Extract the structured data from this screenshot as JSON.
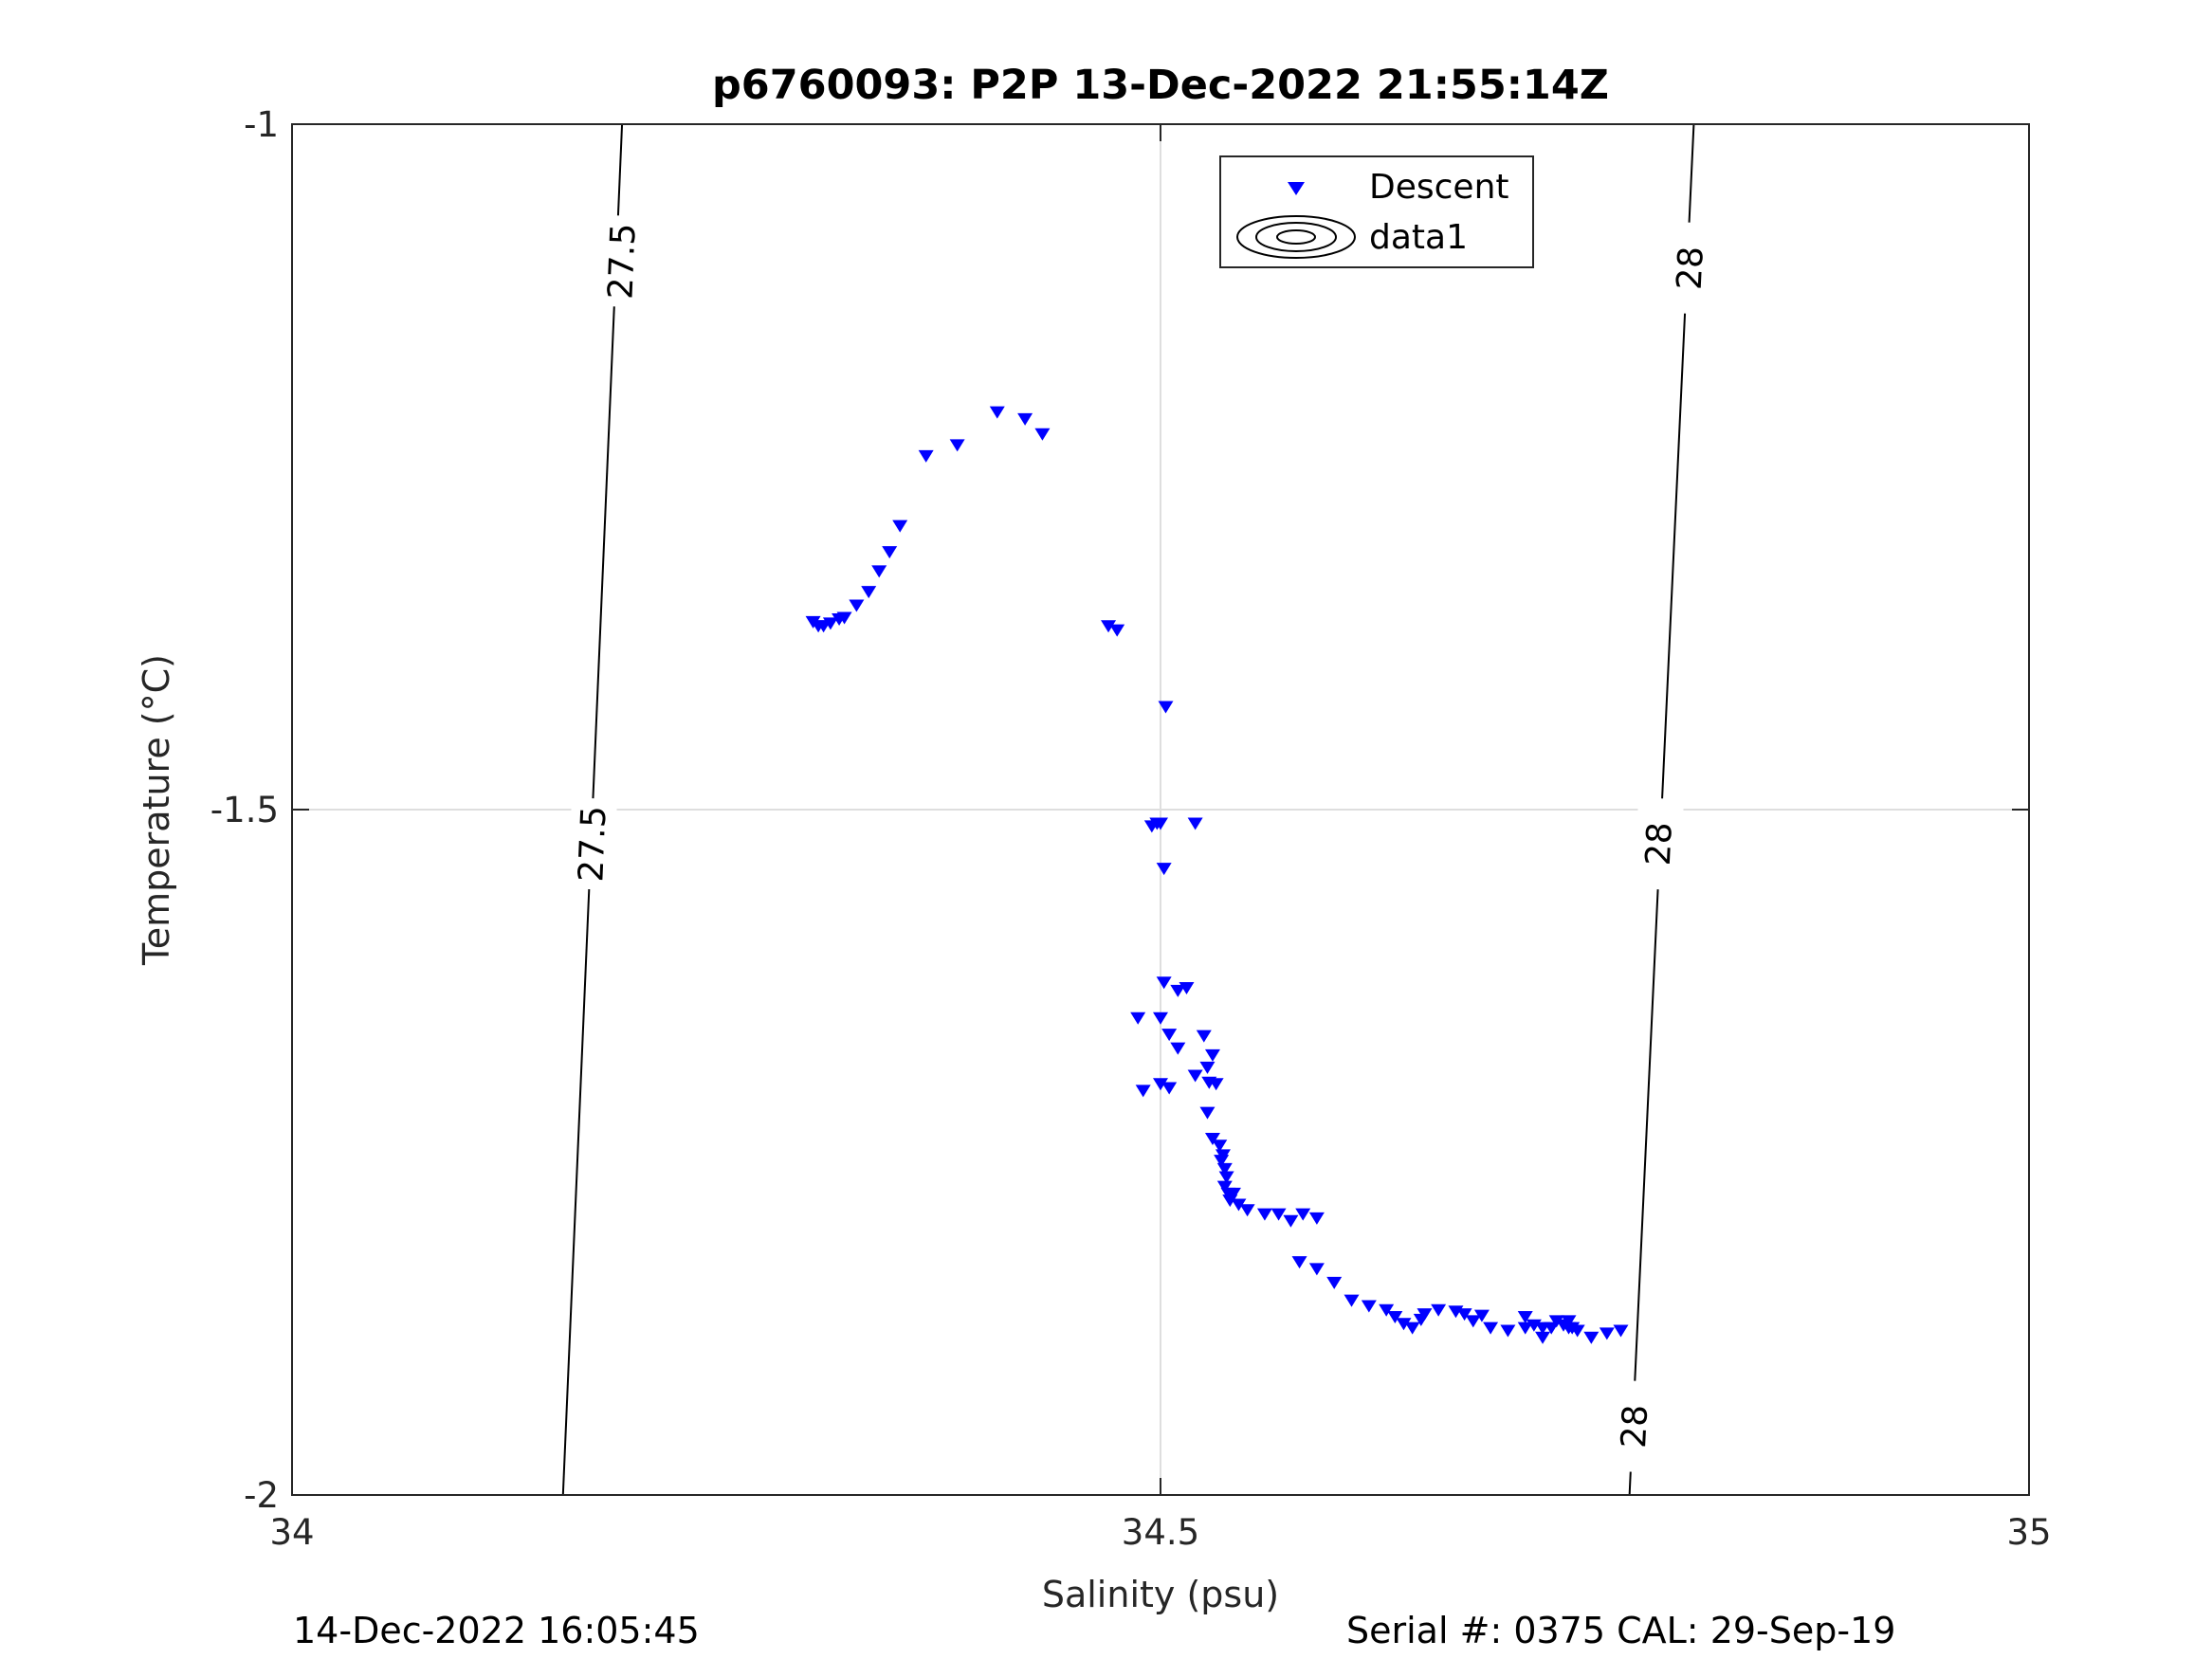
{
  "chart_data": {
    "type": "scatter",
    "title": "p6760093: P2P 13-Dec-2022 21:55:14Z",
    "xlabel": "Salinity (psu)",
    "ylabel": "Temperature (°C)",
    "xlim": [
      34,
      35
    ],
    "ylim": [
      -2,
      -1
    ],
    "xticks": [
      34,
      34.5,
      35
    ],
    "xtick_labels": [
      "34",
      "34.5",
      "35"
    ],
    "yticks": [
      -2,
      -1.5,
      -1
    ],
    "ytick_labels": [
      "-2",
      "-1.5",
      "-1"
    ],
    "grid": true,
    "legend": {
      "placement": "top-center",
      "entries": [
        "Descent",
        "data1"
      ]
    },
    "colors": {
      "descent": "#0000ff",
      "contour": "#000000",
      "grid": "#dedede",
      "axis": "#262626"
    },
    "contours": [
      {
        "label": "27.5",
        "points": [
          [
            34.19,
            -1.0
          ],
          [
            34.156,
            -2.0
          ]
        ],
        "label_positions": [
          [
            34.19,
            -1.1
          ],
          [
            34.173,
            -1.525
          ]
        ]
      },
      {
        "label": "28",
        "points": [
          [
            34.807,
            -1.0
          ],
          [
            34.77,
            -2.0
          ]
        ],
        "label_positions": [
          [
            34.805,
            -1.105
          ],
          [
            34.787,
            -1.525
          ]
        ],
        "extra_labels": [
          [
            34.773,
            -1.95
          ]
        ]
      }
    ],
    "series": [
      {
        "name": "Descent",
        "marker": "triangle-down",
        "x": [
          34.3,
          34.303,
          34.306,
          34.31,
          34.315,
          34.318,
          34.325,
          34.332,
          34.338,
          34.344,
          34.35,
          34.365,
          34.383,
          34.406,
          34.422,
          34.432,
          34.47,
          34.475,
          34.503,
          34.5,
          34.498,
          34.495,
          34.502,
          34.52,
          34.502,
          34.487,
          34.5,
          34.505,
          34.49,
          34.5,
          34.505,
          34.51,
          34.51,
          34.515,
          34.525,
          34.52,
          34.527,
          34.53,
          34.527,
          34.528,
          34.532,
          34.53,
          34.534,
          34.536,
          34.535,
          34.537,
          34.538,
          34.537,
          34.539,
          34.542,
          34.54,
          34.545,
          34.55,
          34.56,
          34.568,
          34.575,
          34.582,
          34.59,
          34.58,
          34.59,
          34.6,
          34.61,
          34.62,
          34.63,
          34.635,
          34.64,
          34.645,
          34.65,
          34.652,
          34.66,
          34.67,
          34.68,
          34.675,
          34.685,
          34.69,
          34.7,
          34.71,
          34.72,
          34.735,
          34.74,
          34.748,
          34.757,
          34.765,
          34.71,
          34.715,
          34.72,
          34.725,
          34.728,
          34.732,
          34.735,
          34.737
        ],
        "y": [
          -1.363,
          -1.366,
          -1.366,
          -1.364,
          -1.361,
          -1.36,
          -1.351,
          -1.341,
          -1.326,
          -1.312,
          -1.293,
          -1.242,
          -1.234,
          -1.21,
          -1.215,
          -1.226,
          -1.366,
          -1.369,
          -1.425,
          -1.51,
          -1.51,
          -1.512,
          -1.543,
          -1.51,
          -1.626,
          -1.652,
          -1.7,
          -1.703,
          -1.705,
          -1.652,
          -1.664,
          -1.632,
          -1.674,
          -1.63,
          -1.665,
          -1.694,
          -1.688,
          -1.679,
          -1.721,
          -1.699,
          -1.7,
          -1.74,
          -1.745,
          -1.752,
          -1.756,
          -1.762,
          -1.768,
          -1.775,
          -1.78,
          -1.78,
          -1.785,
          -1.788,
          -1.792,
          -1.795,
          -1.795,
          -1.8,
          -1.795,
          -1.798,
          -1.83,
          -1.835,
          -1.845,
          -1.858,
          -1.862,
          -1.865,
          -1.87,
          -1.875,
          -1.878,
          -1.872,
          -1.868,
          -1.865,
          -1.866,
          -1.873,
          -1.868,
          -1.869,
          -1.878,
          -1.88,
          -1.878,
          -1.885,
          -1.878,
          -1.88,
          -1.885,
          -1.882,
          -1.88,
          -1.87,
          -1.876,
          -1.878,
          -1.878,
          -1.873,
          -1.876,
          -1.873,
          -1.878
        ]
      }
    ]
  },
  "footer": {
    "date": "14-Dec-2022 16:05:45",
    "serial": "Serial #: 0375  CAL: 29-Sep-19"
  }
}
